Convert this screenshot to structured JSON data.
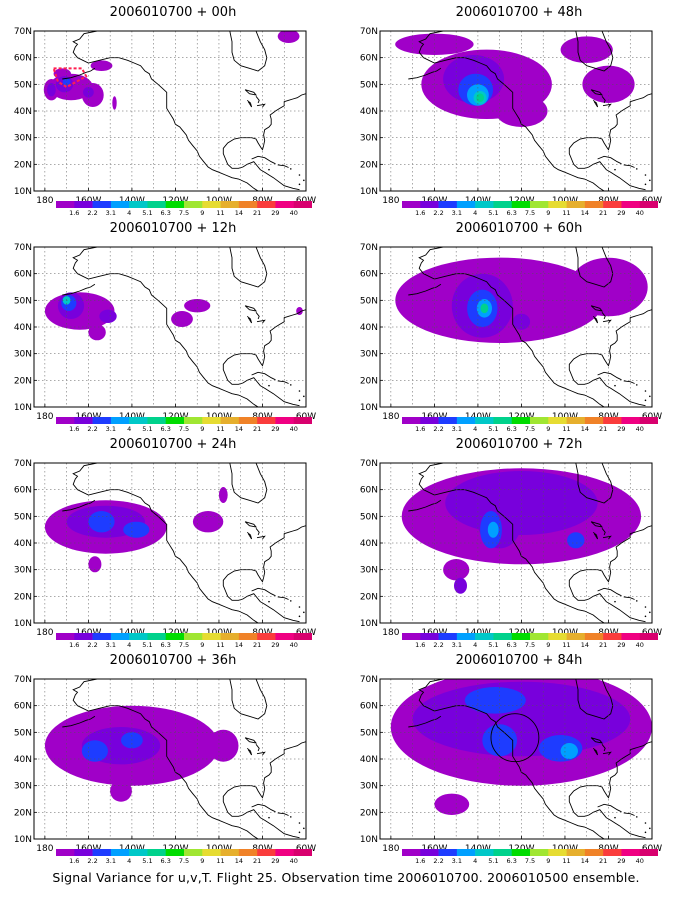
{
  "caption": "Signal Variance for u,v,T. Flight 25. Observation time 2006010700. 2006010500 ensemble.",
  "lat_labels": [
    "70N",
    "60N",
    "50N",
    "40N",
    "30N",
    "20N",
    "10N"
  ],
  "lon_labels": [
    "180",
    "160W",
    "140W",
    "120W",
    "100W",
    "80W",
    "60W"
  ],
  "colorbar": {
    "labels": [
      "1.6",
      "2.2",
      "3.1",
      "4",
      "5.1",
      "6.3",
      "7.5",
      "9",
      "11",
      "14",
      "21",
      "29",
      "40"
    ],
    "colors": [
      "#a000c8",
      "#7800dc",
      "#1e3cff",
      "#00a0ff",
      "#00c8c8",
      "#00d28c",
      "#00dc00",
      "#a0e632",
      "#e6dc32",
      "#e6af2d",
      "#f08228",
      "#fa3c3c",
      "#f00082"
    ]
  },
  "panels": [
    {
      "title": "2006010700 + 00h",
      "col": 0,
      "row": 0,
      "blobs": [
        {
          "lon": 183,
          "lat": 48,
          "rx": 3.5,
          "ry": 4,
          "lvl": 0
        },
        {
          "lon": 192,
          "lat": 49,
          "rx": 10,
          "ry": 5,
          "lvl": 0
        },
        {
          "lon": 202,
          "lat": 46,
          "rx": 5,
          "ry": 4.5,
          "lvl": 0
        },
        {
          "lon": 206,
          "lat": 57,
          "rx": 5,
          "ry": 2,
          "lvl": 0
        },
        {
          "lon": 188,
          "lat": 54,
          "rx": 4,
          "ry": 2,
          "lvl": 0
        },
        {
          "lon": 212,
          "lat": 43,
          "rx": 1,
          "ry": 2.5,
          "lvl": 0
        },
        {
          "lon": 292,
          "lat": 68,
          "rx": 5,
          "ry": 2.5,
          "lvl": 0
        },
        {
          "lon": 183,
          "lat": 48,
          "rx": 2,
          "ry": 2.5,
          "lvl": 1
        },
        {
          "lon": 189,
          "lat": 50,
          "rx": 4,
          "ry": 3,
          "lvl": 1
        },
        {
          "lon": 200,
          "lat": 47,
          "rx": 2.5,
          "ry": 2,
          "lvl": 1
        },
        {
          "lon": 190,
          "lat": 51,
          "rx": 1.8,
          "ry": 1.5,
          "lvl": 2
        }
      ]
    },
    {
      "title": "2006010700 + 48h",
      "col": 1,
      "row": 0,
      "blobs": [
        {
          "lon": 224,
          "lat": 50,
          "rx": 30,
          "ry": 13,
          "lvl": 0
        },
        {
          "lon": 200,
          "lat": 65,
          "rx": 18,
          "ry": 4,
          "lvl": 0
        },
        {
          "lon": 240,
          "lat": 40,
          "rx": 12,
          "ry": 6,
          "lvl": 0
        },
        {
          "lon": 280,
          "lat": 50,
          "rx": 12,
          "ry": 7,
          "lvl": 0
        },
        {
          "lon": 270,
          "lat": 63,
          "rx": 12,
          "ry": 5,
          "lvl": 0
        },
        {
          "lon": 218,
          "lat": 52,
          "rx": 14,
          "ry": 9,
          "lvl": 1
        },
        {
          "lon": 219,
          "lat": 48,
          "rx": 8,
          "ry": 6,
          "lvl": 2
        },
        {
          "lon": 220,
          "lat": 46,
          "rx": 5,
          "ry": 4,
          "lvl": 3
        },
        {
          "lon": 221,
          "lat": 45,
          "rx": 3,
          "ry": 2.5,
          "lvl": 4
        },
        {
          "lon": 221,
          "lat": 45,
          "rx": 1.8,
          "ry": 1.6,
          "lvl": 5
        }
      ]
    },
    {
      "title": "2006010700 + 12h",
      "col": 0,
      "row": 1,
      "blobs": [
        {
          "lon": 196,
          "lat": 46,
          "rx": 16,
          "ry": 7,
          "lvl": 0
        },
        {
          "lon": 204,
          "lat": 38,
          "rx": 4,
          "ry": 3,
          "lvl": 0
        },
        {
          "lon": 243,
          "lat": 43,
          "rx": 5,
          "ry": 3,
          "lvl": 0
        },
        {
          "lon": 250,
          "lat": 48,
          "rx": 6,
          "ry": 2.5,
          "lvl": 0
        },
        {
          "lon": 297,
          "lat": 46,
          "rx": 1.5,
          "ry": 1.5,
          "lvl": 0
        },
        {
          "lon": 192,
          "lat": 48,
          "rx": 6,
          "ry": 5,
          "lvl": 1
        },
        {
          "lon": 209,
          "lat": 44,
          "rx": 4,
          "ry": 2.5,
          "lvl": 1
        },
        {
          "lon": 191,
          "lat": 49,
          "rx": 3.5,
          "ry": 3,
          "lvl": 2
        },
        {
          "lon": 190,
          "lat": 50,
          "rx": 1.8,
          "ry": 1.6,
          "lvl": 4
        }
      ]
    },
    {
      "title": "2006010700 + 60h",
      "col": 1,
      "row": 1,
      "blobs": [
        {
          "lon": 230,
          "lat": 50,
          "rx": 48,
          "ry": 16,
          "lvl": 0
        },
        {
          "lon": 280,
          "lat": 55,
          "rx": 18,
          "ry": 11,
          "lvl": 0
        },
        {
          "lon": 222,
          "lat": 48,
          "rx": 14,
          "ry": 12,
          "lvl": 1
        },
        {
          "lon": 240,
          "lat": 42,
          "rx": 4,
          "ry": 3,
          "lvl": 1
        },
        {
          "lon": 222,
          "lat": 47,
          "rx": 7,
          "ry": 7,
          "lvl": 2
        },
        {
          "lon": 223,
          "lat": 47,
          "rx": 3.5,
          "ry": 3.5,
          "lvl": 3
        },
        {
          "lon": 223,
          "lat": 47,
          "rx": 1.8,
          "ry": 1.8,
          "lvl": 5
        }
      ]
    },
    {
      "title": "2006010700 + 24h",
      "col": 0,
      "row": 2,
      "blobs": [
        {
          "lon": 208,
          "lat": 46,
          "rx": 28,
          "ry": 10,
          "lvl": 0
        },
        {
          "lon": 203,
          "lat": 32,
          "rx": 3,
          "ry": 3,
          "lvl": 0
        },
        {
          "lon": 255,
          "lat": 48,
          "rx": 7,
          "ry": 4,
          "lvl": 0
        },
        {
          "lon": 262,
          "lat": 58,
          "rx": 2,
          "ry": 3,
          "lvl": 0
        },
        {
          "lon": 208,
          "lat": 48,
          "rx": 18,
          "ry": 6,
          "lvl": 1
        },
        {
          "lon": 206,
          "lat": 48,
          "rx": 6,
          "ry": 4,
          "lvl": 2
        },
        {
          "lon": 222,
          "lat": 45,
          "rx": 6,
          "ry": 3,
          "lvl": 2
        }
      ]
    },
    {
      "title": "2006010700 + 72h",
      "col": 1,
      "row": 2,
      "blobs": [
        {
          "lon": 240,
          "lat": 50,
          "rx": 55,
          "ry": 18,
          "lvl": 0
        },
        {
          "lon": 210,
          "lat": 30,
          "rx": 6,
          "ry": 4,
          "lvl": 0
        },
        {
          "lon": 240,
          "lat": 55,
          "rx": 35,
          "ry": 12,
          "lvl": 1
        },
        {
          "lon": 230,
          "lat": 48,
          "rx": 10,
          "ry": 10,
          "lvl": 1
        },
        {
          "lon": 212,
          "lat": 24,
          "rx": 3,
          "ry": 3,
          "lvl": 1
        },
        {
          "lon": 226,
          "lat": 45,
          "rx": 5,
          "ry": 7,
          "lvl": 2
        },
        {
          "lon": 265,
          "lat": 41,
          "rx": 4,
          "ry": 3,
          "lvl": 2
        },
        {
          "lon": 227,
          "lat": 45,
          "rx": 2.5,
          "ry": 3,
          "lvl": 3
        }
      ]
    },
    {
      "title": "2006010700 + 36h",
      "col": 0,
      "row": 3,
      "blobs": [
        {
          "lon": 220,
          "lat": 45,
          "rx": 40,
          "ry": 15,
          "lvl": 0
        },
        {
          "lon": 215,
          "lat": 28,
          "rx": 5,
          "ry": 4,
          "lvl": 0
        },
        {
          "lon": 262,
          "lat": 45,
          "rx": 7,
          "ry": 6,
          "lvl": 0
        },
        {
          "lon": 215,
          "lat": 45,
          "rx": 18,
          "ry": 7,
          "lvl": 1
        },
        {
          "lon": 203,
          "lat": 43,
          "rx": 6,
          "ry": 4,
          "lvl": 2
        },
        {
          "lon": 220,
          "lat": 47,
          "rx": 5,
          "ry": 3,
          "lvl": 2
        }
      ]
    },
    {
      "title": "2006010700 + 84h",
      "col": 1,
      "row": 3,
      "blobs": [
        {
          "lon": 240,
          "lat": 52,
          "rx": 60,
          "ry": 22,
          "lvl": 0
        },
        {
          "lon": 208,
          "lat": 23,
          "rx": 8,
          "ry": 4,
          "lvl": 0
        },
        {
          "lon": 240,
          "lat": 55,
          "rx": 50,
          "ry": 14,
          "lvl": 1
        },
        {
          "lon": 228,
          "lat": 62,
          "rx": 14,
          "ry": 5,
          "lvl": 2
        },
        {
          "lon": 258,
          "lat": 44,
          "rx": 10,
          "ry": 5,
          "lvl": 2
        },
        {
          "lon": 230,
          "lat": 47,
          "rx": 8,
          "ry": 6,
          "lvl": 2
        },
        {
          "lon": 262,
          "lat": 43,
          "rx": 4,
          "ry": 3,
          "lvl": 3
        }
      ]
    }
  ]
}
